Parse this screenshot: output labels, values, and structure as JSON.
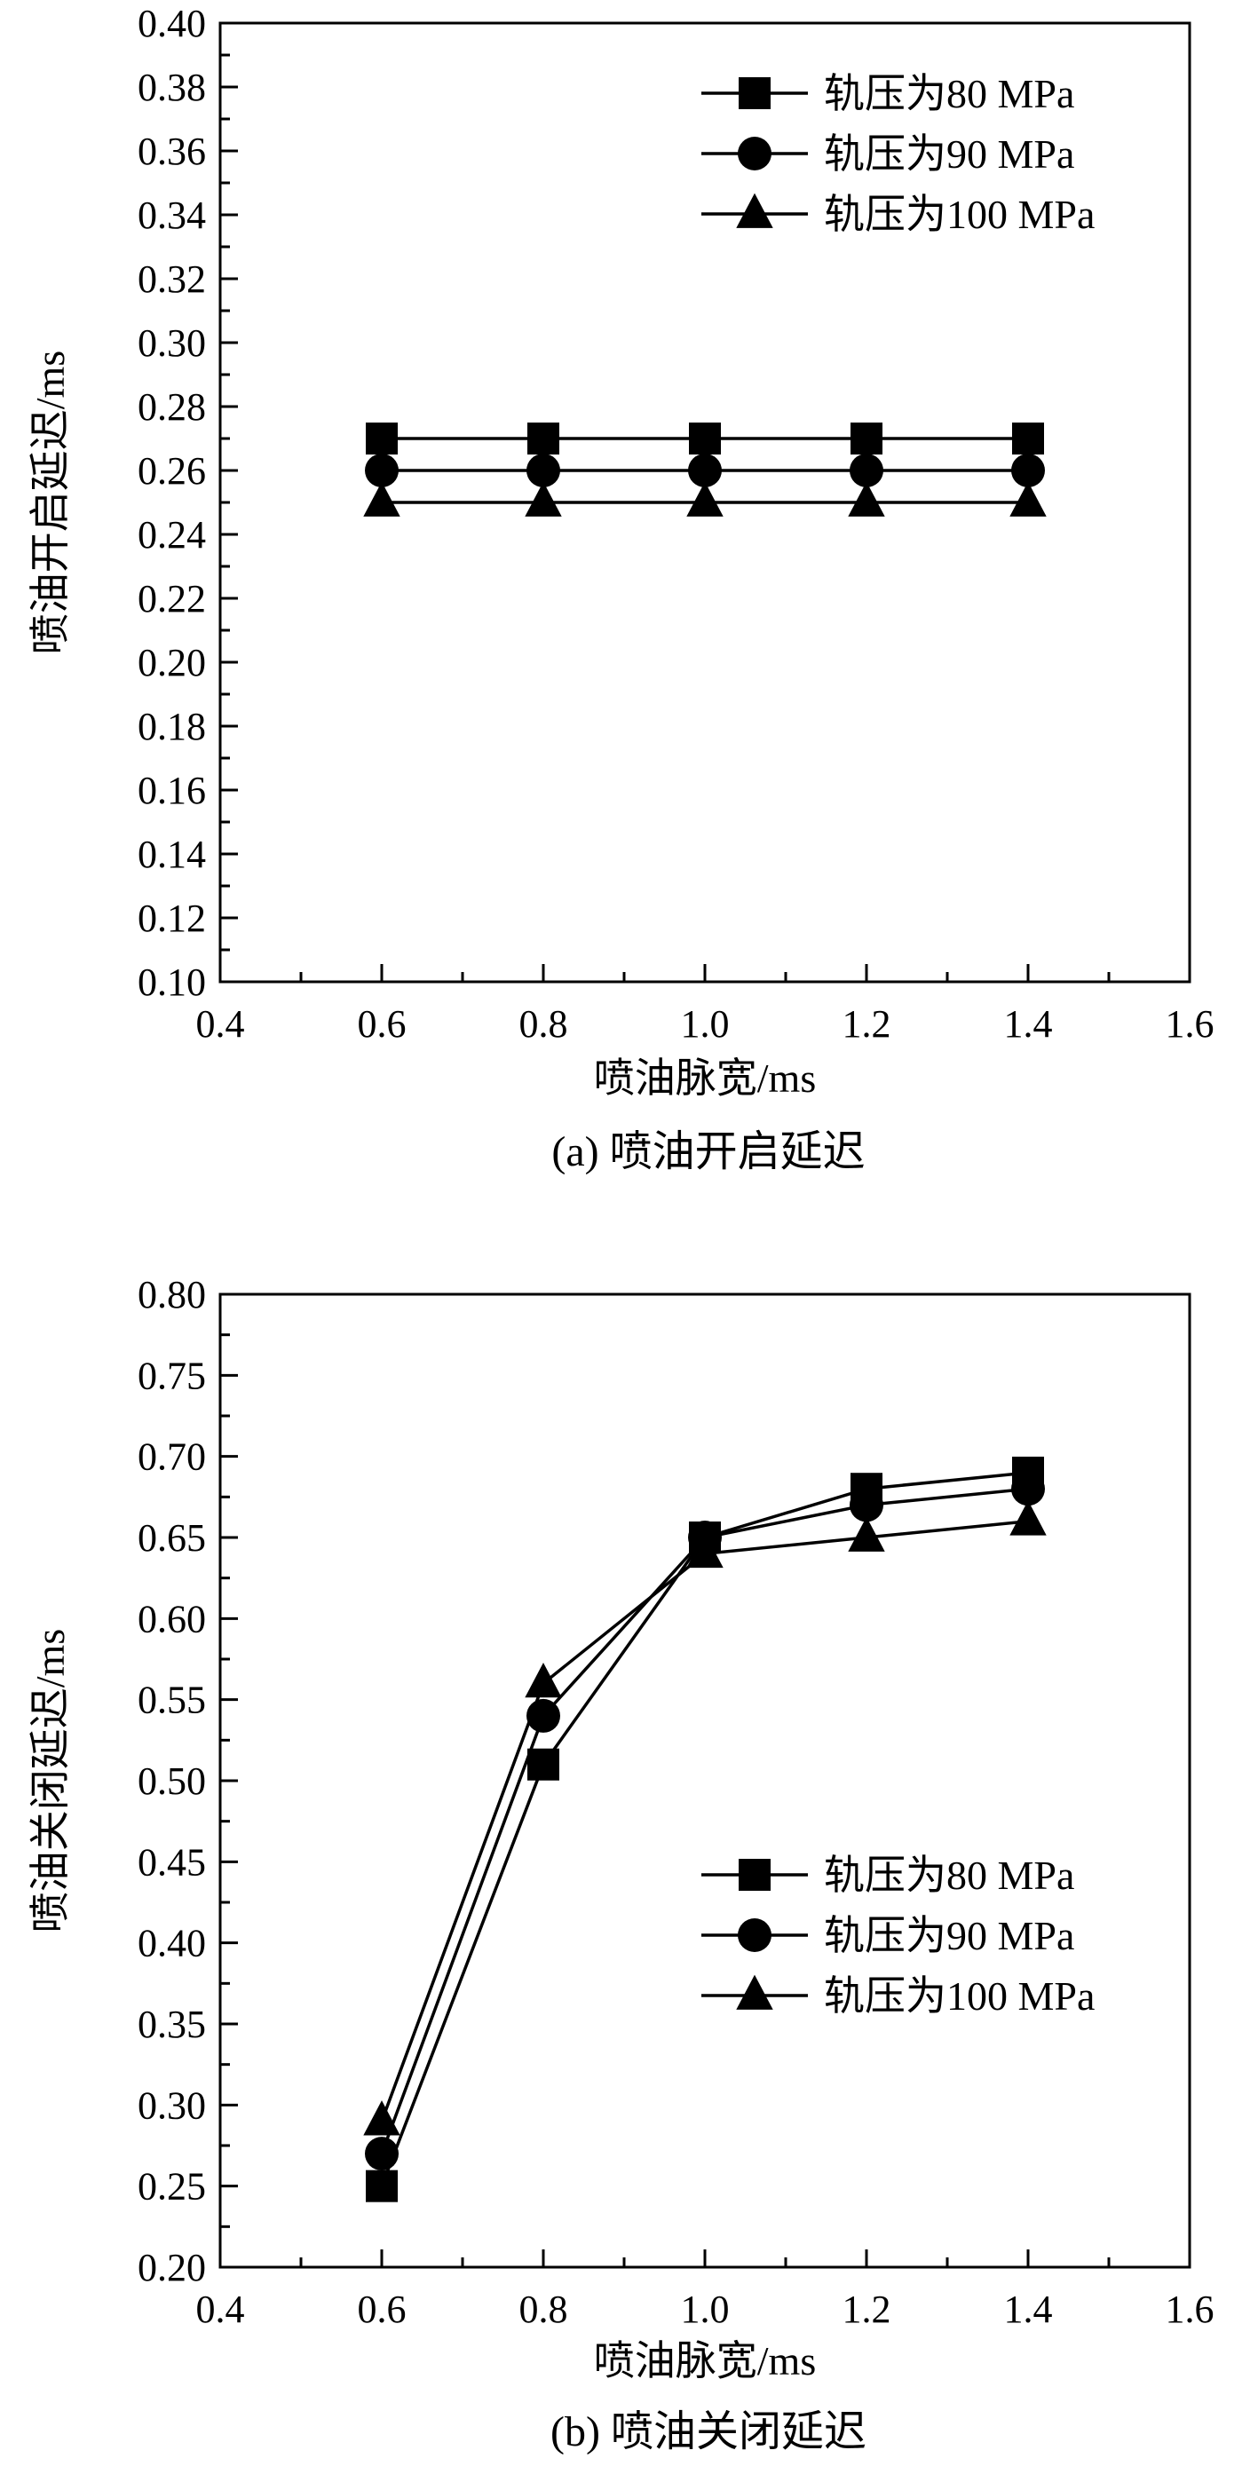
{
  "chart_data": [
    {
      "type": "line",
      "caption": "(a) 喷油开启延迟",
      "xlabel": "喷油脉宽/ms",
      "ylabel": "喷油开启延迟/ms",
      "xlim": [
        0.4,
        1.6
      ],
      "ylim": [
        0.1,
        0.4
      ],
      "xticks": [
        "0.4",
        "0.6",
        "0.8",
        "1.0",
        "1.2",
        "1.4",
        "1.6"
      ],
      "yticks": [
        "0.10",
        "0.12",
        "0.14",
        "0.16",
        "0.18",
        "0.20",
        "0.22",
        "0.24",
        "0.26",
        "0.28",
        "0.30",
        "0.32",
        "0.34",
        "0.36",
        "0.38",
        "0.40"
      ],
      "x": [
        0.6,
        0.8,
        1.0,
        1.2,
        1.4
      ],
      "legend_position": "top-right",
      "grid": false,
      "series": [
        {
          "name": "轨压为80 MPa",
          "marker": "square",
          "values": [
            0.27,
            0.27,
            0.27,
            0.27,
            0.27
          ]
        },
        {
          "name": "轨压为90 MPa",
          "marker": "circle",
          "values": [
            0.26,
            0.26,
            0.26,
            0.26,
            0.26
          ]
        },
        {
          "name": "轨压为100 MPa",
          "marker": "triangle",
          "values": [
            0.25,
            0.25,
            0.25,
            0.25,
            0.25
          ]
        }
      ]
    },
    {
      "type": "line",
      "caption": "(b) 喷油关闭延迟",
      "xlabel": "喷油脉宽/ms",
      "ylabel": "喷油关闭延迟/ms",
      "xlim": [
        0.4,
        1.6
      ],
      "ylim": [
        0.2,
        0.8
      ],
      "xticks": [
        "0.4",
        "0.6",
        "0.8",
        "1.0",
        "1.2",
        "1.4",
        "1.6"
      ],
      "yticks": [
        "0.20",
        "0.25",
        "0.30",
        "0.35",
        "0.40",
        "0.45",
        "0.50",
        "0.55",
        "0.60",
        "0.65",
        "0.70",
        "0.75",
        "0.80"
      ],
      "x": [
        0.6,
        0.8,
        1.0,
        1.2,
        1.4
      ],
      "legend_position": "middle-right",
      "grid": false,
      "series": [
        {
          "name": "轨压为80 MPa",
          "marker": "square",
          "values": [
            0.25,
            0.51,
            0.65,
            0.68,
            0.69
          ]
        },
        {
          "name": "轨压为90 MPa",
          "marker": "circle",
          "values": [
            0.27,
            0.54,
            0.65,
            0.67,
            0.68
          ]
        },
        {
          "name": "轨压为100 MPa",
          "marker": "triangle",
          "values": [
            0.29,
            0.56,
            0.64,
            0.65,
            0.66
          ]
        }
      ]
    }
  ]
}
